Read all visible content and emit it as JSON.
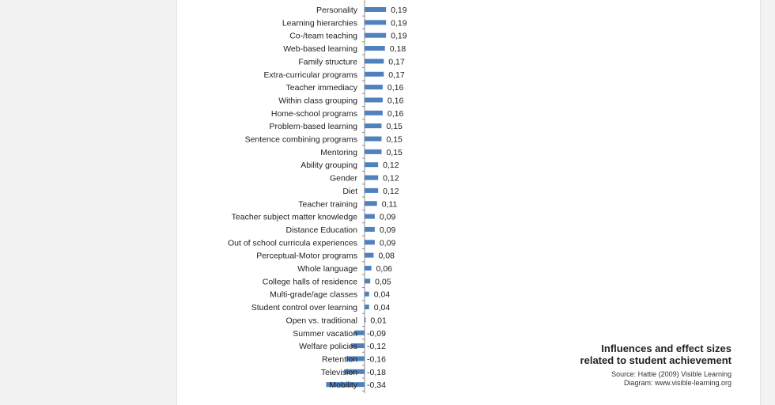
{
  "chart_data": {
    "type": "bar",
    "orientation": "horizontal",
    "categories": [
      "Personality",
      "Learning hierarchies",
      "Co-/team teaching",
      "Web-based learning",
      "Family structure",
      "Extra-curricular programs",
      "Teacher immediacy",
      "Within class grouping",
      "Home-school programs",
      "Problem-based learning",
      "Sentence combining programs",
      "Mentoring",
      "Ability grouping",
      "Gender",
      "Diet",
      "Teacher training",
      "Teacher subject matter knowledge",
      "Distance Education",
      "Out of school curricula experiences",
      "Perceptual-Motor programs",
      "Whole language",
      "College halls of residence",
      "Multi-grade/age classes",
      "Student control over learning",
      "Open vs. traditional",
      "Summer vacation",
      "Welfare policies",
      "Retention",
      "Television",
      "Mobility"
    ],
    "values": [
      0.19,
      0.19,
      0.19,
      0.18,
      0.17,
      0.17,
      0.16,
      0.16,
      0.16,
      0.15,
      0.15,
      0.15,
      0.12,
      0.12,
      0.12,
      0.11,
      0.09,
      0.09,
      0.09,
      0.08,
      0.06,
      0.05,
      0.04,
      0.04,
      0.01,
      -0.09,
      -0.12,
      -0.16,
      -0.18,
      -0.34
    ],
    "value_labels": [
      "0,19",
      "0,19",
      "0,19",
      "0,18",
      "0,17",
      "0,17",
      "0,16",
      "0,16",
      "0,16",
      "0,15",
      "0,15",
      "0,15",
      "0,12",
      "0,12",
      "0,12",
      "0,11",
      "0,09",
      "0,09",
      "0,09",
      "0,08",
      "0,06",
      "0,05",
      "0,04",
      "0,04",
      "0,01",
      "-0,09",
      "-0,12",
      "-0,16",
      "-0,18",
      "-0,34"
    ],
    "bar_color": "#4f81bd",
    "axis_color": "#8c8c8c",
    "grid": false,
    "legend": "none"
  },
  "annotation": {
    "title_line1": "Influences and effect sizes",
    "title_line2": "related to student achievement",
    "source_line1": "Source: Hattie (2009) Visible Learning",
    "source_line2": "Diagram: www.visible-learning.org"
  }
}
